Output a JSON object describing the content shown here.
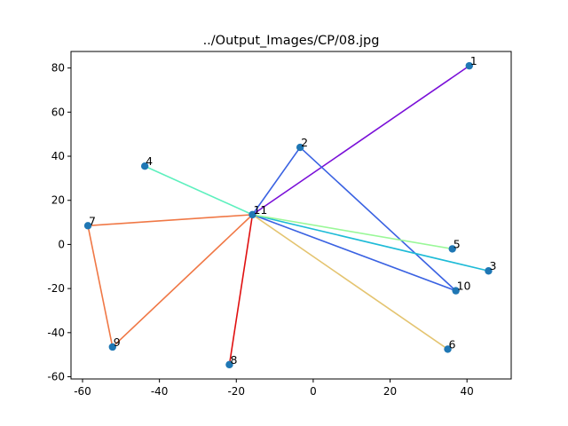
{
  "chart_data": {
    "type": "scatter",
    "title": "../Output_Images/CP/08.jpg",
    "xlabel": "",
    "ylabel": "",
    "xlim": [
      -63,
      51.5
    ],
    "ylim": [
      -61,
      87.5
    ],
    "xticks": [
      -60,
      -40,
      -20,
      0,
      20,
      40
    ],
    "yticks": [
      -60,
      -40,
      -20,
      0,
      20,
      40,
      60,
      80
    ],
    "grid": false,
    "point_color": "#1f77b4",
    "points": [
      {
        "label": "1",
        "x": 40.6,
        "y": 81
      },
      {
        "label": "2",
        "x": -3.4,
        "y": 44
      },
      {
        "label": "3",
        "x": 45.6,
        "y": -12
      },
      {
        "label": "4",
        "x": -43.8,
        "y": 35.5
      },
      {
        "label": "5",
        "x": 36.2,
        "y": -2
      },
      {
        "label": "6",
        "x": 35,
        "y": -47.5
      },
      {
        "label": "7",
        "x": -58.6,
        "y": 8.5
      },
      {
        "label": "8",
        "x": -21.8,
        "y": -54.5
      },
      {
        "label": "9",
        "x": -52.2,
        "y": -46.5
      },
      {
        "label": "10",
        "x": 37.1,
        "y": -21
      },
      {
        "label": "11",
        "x": -15.8,
        "y": 13.5
      }
    ],
    "edges": [
      {
        "from": "11",
        "to": "1",
        "color": "#7a10d8"
      },
      {
        "from": "11",
        "to": "2",
        "color": "#3a62e2"
      },
      {
        "from": "2",
        "to": "10",
        "color": "#3a62e2"
      },
      {
        "from": "11",
        "to": "10",
        "color": "#3a62e2"
      },
      {
        "from": "11",
        "to": "3",
        "color": "#1ebbd7"
      },
      {
        "from": "11",
        "to": "4",
        "color": "#5ef0be"
      },
      {
        "from": "11",
        "to": "5",
        "color": "#9af898"
      },
      {
        "from": "11",
        "to": "6",
        "color": "#e4c470"
      },
      {
        "from": "11",
        "to": "7",
        "color": "#f07846"
      },
      {
        "from": "7",
        "to": "9",
        "color": "#f07846"
      },
      {
        "from": "9",
        "to": "11",
        "color": "#f07846"
      },
      {
        "from": "11",
        "to": "8",
        "color": "#e01010"
      }
    ]
  }
}
